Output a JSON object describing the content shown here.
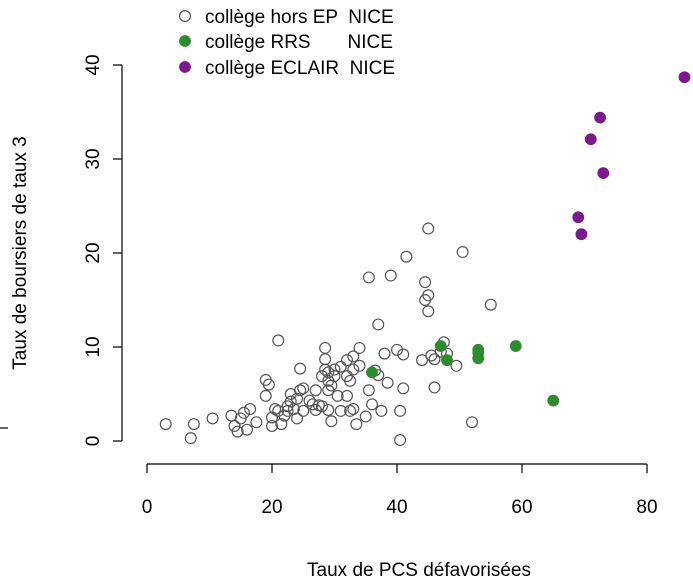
{
  "chart_data": {
    "type": "scatter",
    "xlabel": "Taux de PCS défavorisées",
    "ylabel": "Taux de boursiers de taux 3",
    "xlim": [
      0,
      87
    ],
    "ylim": [
      0,
      40
    ],
    "x_ticks": [
      0,
      20,
      40,
      60,
      80
    ],
    "y_ticks": [
      0,
      10,
      20,
      30,
      40
    ],
    "legend_position": "top-left",
    "grid": false,
    "series": [
      {
        "name": "collège hors EP  NICE",
        "marker": "open-circle",
        "color": "#555555",
        "points": [
          [
            3,
            1.8
          ],
          [
            7,
            0.3
          ],
          [
            7.5,
            1.8
          ],
          [
            10.5,
            2.4
          ],
          [
            13.5,
            2.7
          ],
          [
            14,
            1.6
          ],
          [
            14.5,
            1
          ],
          [
            15,
            2.4
          ],
          [
            15.5,
            3
          ],
          [
            16,
            1.2
          ],
          [
            16.5,
            3.4
          ],
          [
            17.5,
            2
          ],
          [
            19,
            4.8
          ],
          [
            19.5,
            6
          ],
          [
            19,
            6.5
          ],
          [
            20,
            1.6
          ],
          [
            20,
            2.5
          ],
          [
            20.5,
            3.4
          ],
          [
            21,
            3.2
          ],
          [
            21.5,
            1.8
          ],
          [
            21,
            10.7
          ],
          [
            22,
            2.7
          ],
          [
            22.5,
            3.2
          ],
          [
            22.5,
            3.7
          ],
          [
            23,
            4.2
          ],
          [
            23,
            5
          ],
          [
            23.5,
            3.4
          ],
          [
            24,
            2.4
          ],
          [
            24,
            4.5
          ],
          [
            24.5,
            5.4
          ],
          [
            24.5,
            7.7
          ],
          [
            25,
            5.6
          ],
          [
            25,
            3.2
          ],
          [
            26,
            4.3
          ],
          [
            26.5,
            3.9
          ],
          [
            27,
            3.3
          ],
          [
            27,
            5.4
          ],
          [
            27.5,
            3.8
          ],
          [
            28,
            3.7
          ],
          [
            28,
            6.9
          ],
          [
            28.5,
            7.6
          ],
          [
            28.5,
            8.7
          ],
          [
            28.5,
            9.9
          ],
          [
            29,
            3.3
          ],
          [
            29,
            5.4
          ],
          [
            29,
            6.4
          ],
          [
            29,
            7.3
          ],
          [
            29.5,
            2.1
          ],
          [
            29.5,
            5.9
          ],
          [
            30,
            7.6
          ],
          [
            30,
            6.9
          ],
          [
            30.5,
            4.8
          ],
          [
            31,
            3.2
          ],
          [
            31,
            7.9
          ],
          [
            32,
            6.9
          ],
          [
            32,
            8.6
          ],
          [
            32,
            4.8
          ],
          [
            32.5,
            3.2
          ],
          [
            32.5,
            6.4
          ],
          [
            33,
            9
          ],
          [
            33,
            7.6
          ],
          [
            33,
            3.4
          ],
          [
            33.5,
            1.8
          ],
          [
            34,
            8
          ],
          [
            34,
            9.9
          ],
          [
            35,
            2.6
          ],
          [
            35.5,
            5.4
          ],
          [
            36,
            3.9
          ],
          [
            36.5,
            7.5
          ],
          [
            37,
            7
          ],
          [
            37.5,
            3.2
          ],
          [
            37,
            12.4
          ],
          [
            38,
            9.3
          ],
          [
            39,
            17.6
          ],
          [
            40,
            9.7
          ],
          [
            40.5,
            3.2
          ],
          [
            40.5,
            0.1
          ],
          [
            41,
            9.2
          ],
          [
            41,
            5.6
          ],
          [
            41.5,
            19.6
          ],
          [
            35.5,
            17.4
          ],
          [
            44,
            8.6
          ],
          [
            44.5,
            15
          ],
          [
            44.5,
            16.9
          ],
          [
            45,
            15.5
          ],
          [
            45,
            22.6
          ],
          [
            45,
            13.8
          ],
          [
            45.5,
            9.1
          ],
          [
            46,
            5.7
          ],
          [
            46,
            8.7
          ],
          [
            47,
            9.5
          ],
          [
            47.5,
            10.5
          ],
          [
            49.5,
            8
          ],
          [
            50.5,
            20.1
          ],
          [
            52,
            2
          ],
          [
            55,
            14.5
          ],
          [
            48,
            9.3
          ],
          [
            38.5,
            6.2
          ]
        ]
      },
      {
        "name": "collège RRS       NICE",
        "marker": "filled-circle",
        "color": "#2e8b2e",
        "points": [
          [
            36,
            7.3
          ],
          [
            47,
            10.1
          ],
          [
            48,
            8.6
          ],
          [
            53,
            9.7
          ],
          [
            53,
            8.8
          ],
          [
            59,
            10.1
          ],
          [
            65,
            4.3
          ],
          [
            53,
            9.4
          ]
        ]
      },
      {
        "name": "collège ECLAIR  NICE",
        "marker": "filled-circle",
        "color": "#7a1a8c",
        "points": [
          [
            69,
            23.8
          ],
          [
            69.5,
            22
          ],
          [
            71,
            32.1
          ],
          [
            72.5,
            34.4
          ],
          [
            73,
            28.5
          ],
          [
            86,
            38.7
          ]
        ]
      }
    ]
  }
}
